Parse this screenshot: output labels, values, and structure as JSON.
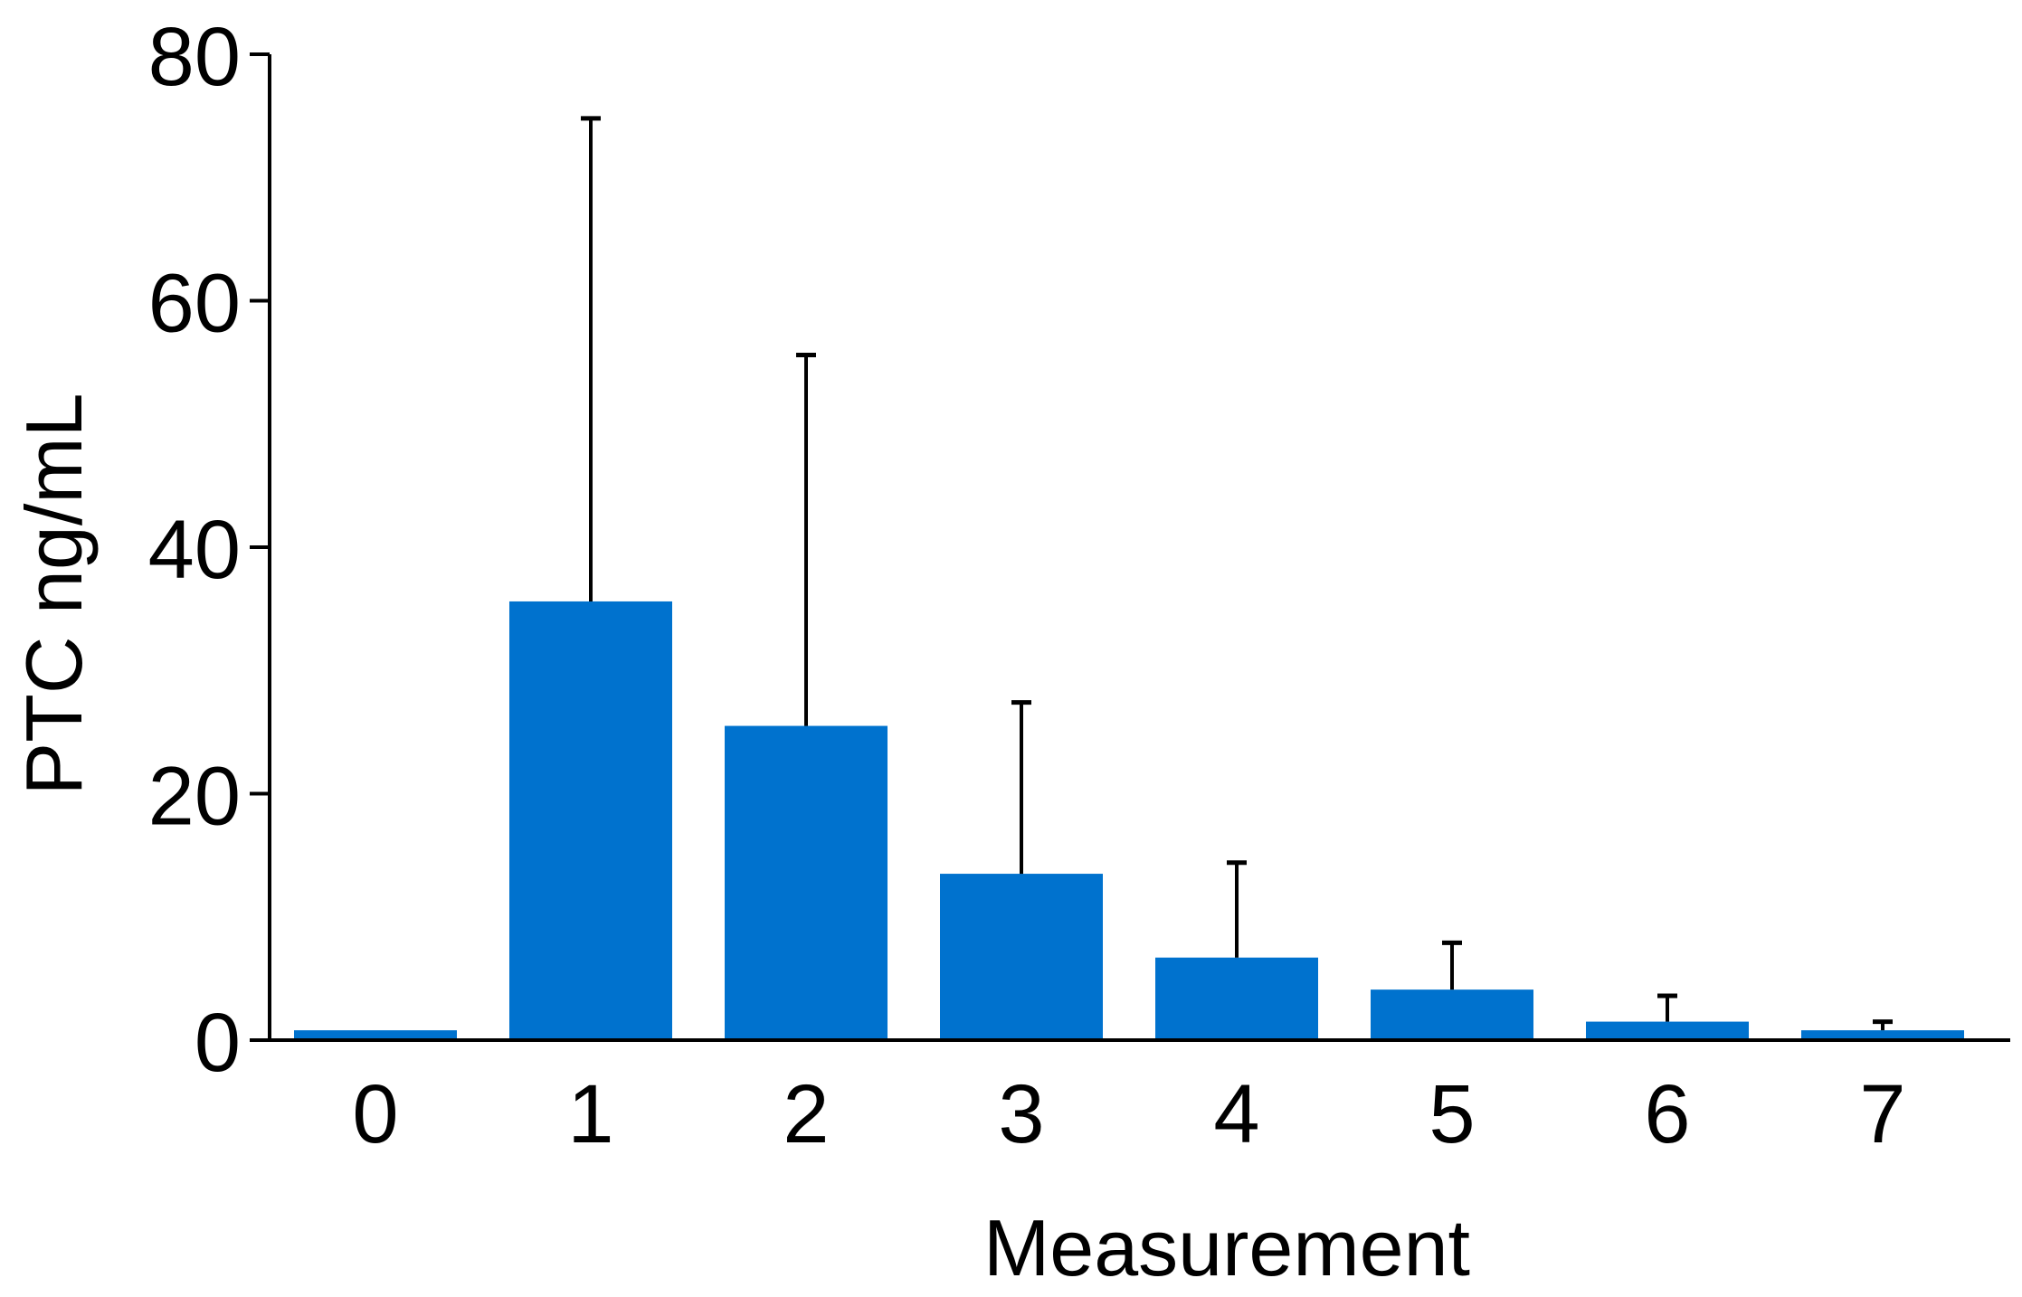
{
  "chart_data": {
    "type": "bar",
    "title": "",
    "xlabel": "Measurement",
    "ylabel": "PTC ng/mL",
    "categories": [
      "0",
      "1",
      "2",
      "3",
      "4",
      "5",
      "6",
      "7"
    ],
    "values": [
      0.8,
      35.6,
      25.5,
      13.5,
      6.7,
      4.1,
      1.5,
      0.8
    ],
    "error_upper": [
      0.8,
      74.8,
      55.6,
      27.4,
      14.4,
      7.9,
      3.6,
      1.5
    ],
    "ylim": [
      0,
      80
    ],
    "yticks": [
      "0",
      "20",
      "40",
      "60",
      "80"
    ],
    "grid": false,
    "legend": false,
    "colors": {
      "bar": "#0072CE",
      "axis": "#000000",
      "error_bar": "#000000"
    }
  }
}
